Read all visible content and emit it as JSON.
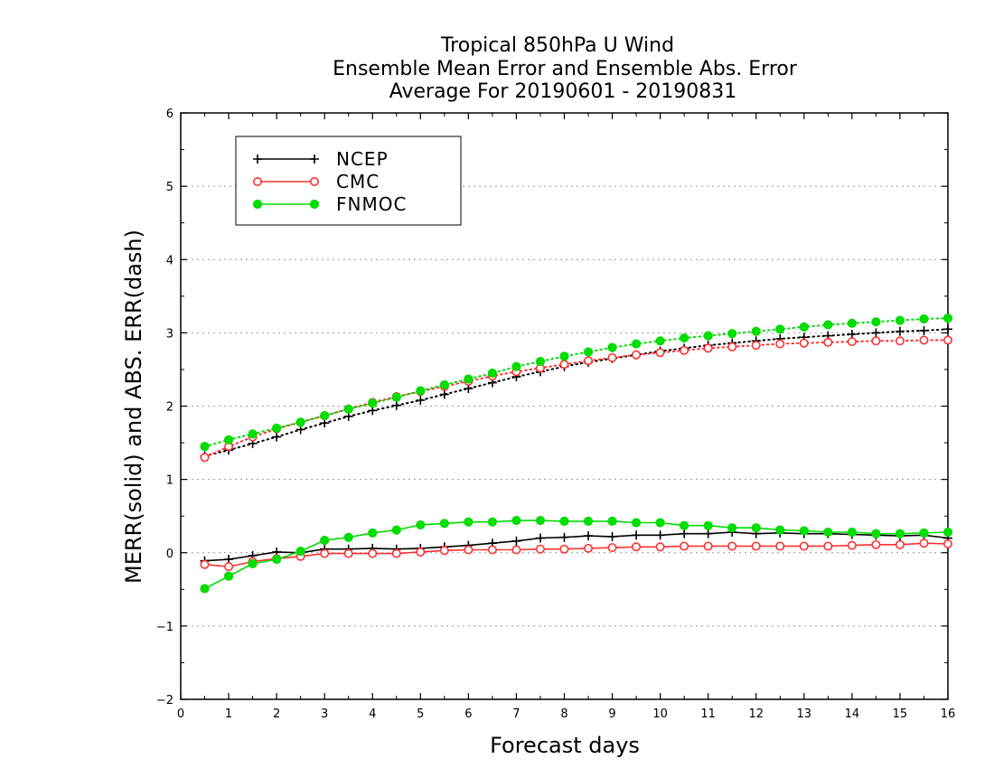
{
  "chart_data": {
    "type": "line",
    "title": [
      "Tropical 850hPa U Wind",
      "Ensemble Mean Error and Ensemble Abs. Error",
      "Average For 20190601 - 20190831"
    ],
    "xlabel": "Forecast days",
    "ylabel": "MERR(solid) and ABS. ERR(dash)",
    "xlim": [
      0,
      16
    ],
    "ylim": [
      -2,
      6
    ],
    "xticks": [
      "0",
      "1",
      "2",
      "3",
      "4",
      "5",
      "6",
      "7",
      "8",
      "9",
      "10",
      "11",
      "12",
      "13",
      "14",
      "15",
      "16"
    ],
    "yticks": [
      "−2",
      "−1",
      "0",
      "1",
      "2",
      "3",
      "4",
      "5",
      "6"
    ],
    "grid": "horizontal dotted",
    "legend_position": "top-left",
    "x": [
      0.5,
      1,
      1.5,
      2,
      2.5,
      3,
      3.5,
      4,
      4.5,
      5,
      5.5,
      6,
      6.5,
      7,
      7.5,
      8,
      8.5,
      9,
      9.5,
      10,
      10.5,
      11,
      11.5,
      12,
      12.5,
      13,
      13.5,
      14,
      14.5,
      15,
      15.5,
      16
    ],
    "series": [
      {
        "name": "NCEP",
        "color": "#000000",
        "marker": "plus",
        "merr": [
          -0.11,
          -0.09,
          -0.04,
          0.01,
          0.0,
          0.05,
          0.05,
          0.06,
          0.05,
          0.06,
          0.08,
          0.1,
          0.13,
          0.16,
          0.2,
          0.21,
          0.23,
          0.22,
          0.24,
          0.24,
          0.26,
          0.26,
          0.28,
          0.26,
          0.27,
          0.26,
          0.26,
          0.25,
          0.24,
          0.23,
          0.24,
          0.2
        ],
        "abs_err": [
          1.32,
          1.4,
          1.49,
          1.58,
          1.68,
          1.77,
          1.86,
          1.94,
          2.01,
          2.08,
          2.16,
          2.24,
          2.32,
          2.4,
          2.47,
          2.54,
          2.6,
          2.65,
          2.7,
          2.75,
          2.79,
          2.83,
          2.86,
          2.89,
          2.92,
          2.94,
          2.96,
          2.98,
          3.0,
          3.02,
          3.03,
          3.05
        ]
      },
      {
        "name": "CMC",
        "color": "#ff3030",
        "marker": "open-circle",
        "merr": [
          -0.16,
          -0.19,
          -0.12,
          -0.08,
          -0.05,
          -0.01,
          -0.01,
          -0.01,
          -0.01,
          0.01,
          0.03,
          0.04,
          0.04,
          0.04,
          0.05,
          0.05,
          0.06,
          0.07,
          0.08,
          0.08,
          0.09,
          0.09,
          0.09,
          0.09,
          0.09,
          0.09,
          0.09,
          0.1,
          0.11,
          0.11,
          0.13,
          0.12
        ],
        "abs_err": [
          1.3,
          1.45,
          1.58,
          1.69,
          1.78,
          1.87,
          1.96,
          2.05,
          2.13,
          2.2,
          2.27,
          2.34,
          2.41,
          2.47,
          2.52,
          2.57,
          2.62,
          2.66,
          2.7,
          2.73,
          2.76,
          2.79,
          2.81,
          2.83,
          2.85,
          2.86,
          2.87,
          2.88,
          2.89,
          2.89,
          2.9,
          2.9
        ]
      },
      {
        "name": "FNMOC",
        "color": "#00dd00",
        "marker": "filled-circle",
        "merr": [
          -0.49,
          -0.32,
          -0.15,
          -0.09,
          0.02,
          0.17,
          0.21,
          0.27,
          0.31,
          0.38,
          0.4,
          0.42,
          0.42,
          0.44,
          0.44,
          0.43,
          0.43,
          0.43,
          0.41,
          0.41,
          0.37,
          0.37,
          0.34,
          0.34,
          0.31,
          0.3,
          0.28,
          0.28,
          0.26,
          0.26,
          0.27,
          0.28
        ],
        "abs_err": [
          1.45,
          1.54,
          1.62,
          1.7,
          1.78,
          1.87,
          1.96,
          2.04,
          2.12,
          2.21,
          2.29,
          2.37,
          2.45,
          2.54,
          2.61,
          2.68,
          2.74,
          2.8,
          2.85,
          2.89,
          2.93,
          2.96,
          2.99,
          3.02,
          3.05,
          3.08,
          3.11,
          3.13,
          3.15,
          3.17,
          3.19,
          3.2
        ]
      }
    ]
  }
}
